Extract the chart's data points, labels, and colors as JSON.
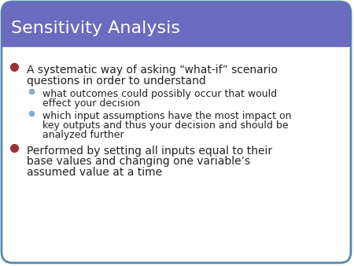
{
  "title": "Sensitivity Analysis",
  "title_color": "#ffffff",
  "title_bg_color": "#6b6bbf",
  "body_bg_color": "#ffffff",
  "border_color": "#5588aa",
  "slide_bg_color": "#ffffff",
  "bullet1_color": "#993333",
  "bullet2_color": "#88aacc",
  "text_color": "#222222",
  "title_fontsize": 16,
  "body_fontsize": 10,
  "sub_fontsize": 9,
  "bullet1_text": "A systematic way of asking “what-if” scenario\nquestions in order to understand",
  "sub_bullet1_text": "what outcomes could possibly occur that would\neffect your decision",
  "sub_bullet2_text": "which input assumptions have the most impact on\nkey outputs and thus your decision and should be\nanalyzed further",
  "bullet2_text": "Performed by setting all inputs equal to their\nbase values and changing one variable’s\nassumed value at a time"
}
